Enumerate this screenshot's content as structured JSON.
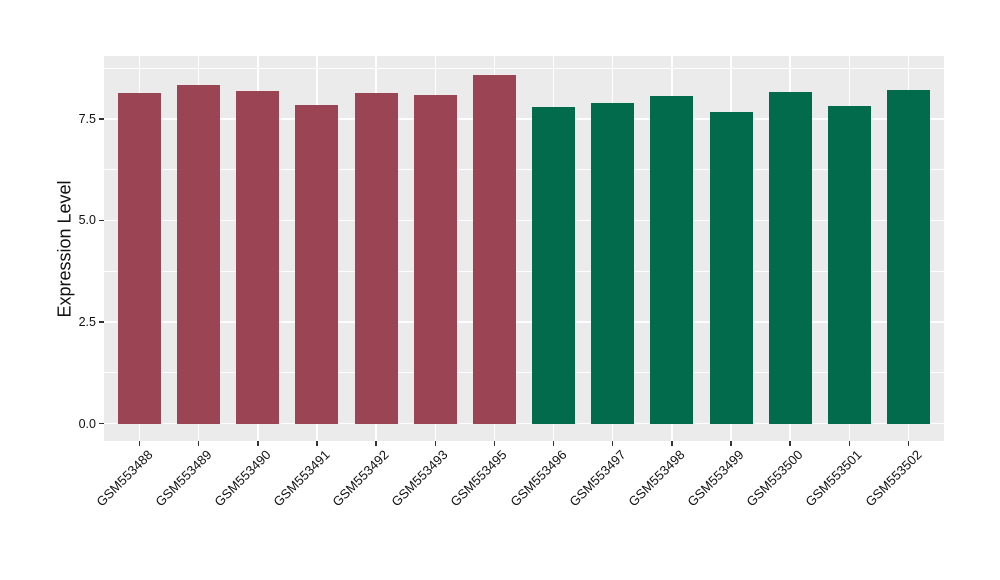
{
  "chart_data": {
    "type": "bar",
    "title": "",
    "ylabel": "Expression Level",
    "xlabel": "",
    "categories": [
      "GSM553488",
      "GSM553489",
      "GSM553490",
      "GSM553491",
      "GSM553492",
      "GSM553493",
      "GSM553495",
      "GSM553496",
      "GSM553497",
      "GSM553498",
      "GSM553499",
      "GSM553500",
      "GSM553501",
      "GSM553502"
    ],
    "values": [
      8.13,
      8.34,
      8.18,
      7.85,
      8.13,
      8.08,
      8.59,
      7.79,
      7.9,
      8.06,
      7.67,
      8.16,
      7.83,
      8.22
    ],
    "groups": [
      0,
      0,
      0,
      0,
      0,
      0,
      0,
      1,
      1,
      1,
      1,
      1,
      1,
      1
    ],
    "group_colors": [
      "#9B4454",
      "#016B4C"
    ],
    "yticks": [
      0,
      2.5,
      5,
      7.5
    ],
    "ytick_labels": [
      "0.0",
      "2.5",
      "5.0",
      "7.5"
    ],
    "minor_yticks": [
      1.25,
      3.75,
      6.25,
      8.75
    ],
    "ylim": [
      0,
      9.05
    ],
    "ylim_expanded": [
      -0.43,
      9.05
    ],
    "x_tick_rotation": 45,
    "legend": "none",
    "grid": "on",
    "panel_background": "#EBEBEB",
    "grid_color": "#FFFFFF",
    "axis_text_color": "#111111",
    "tick_mark_color": "#333333"
  }
}
